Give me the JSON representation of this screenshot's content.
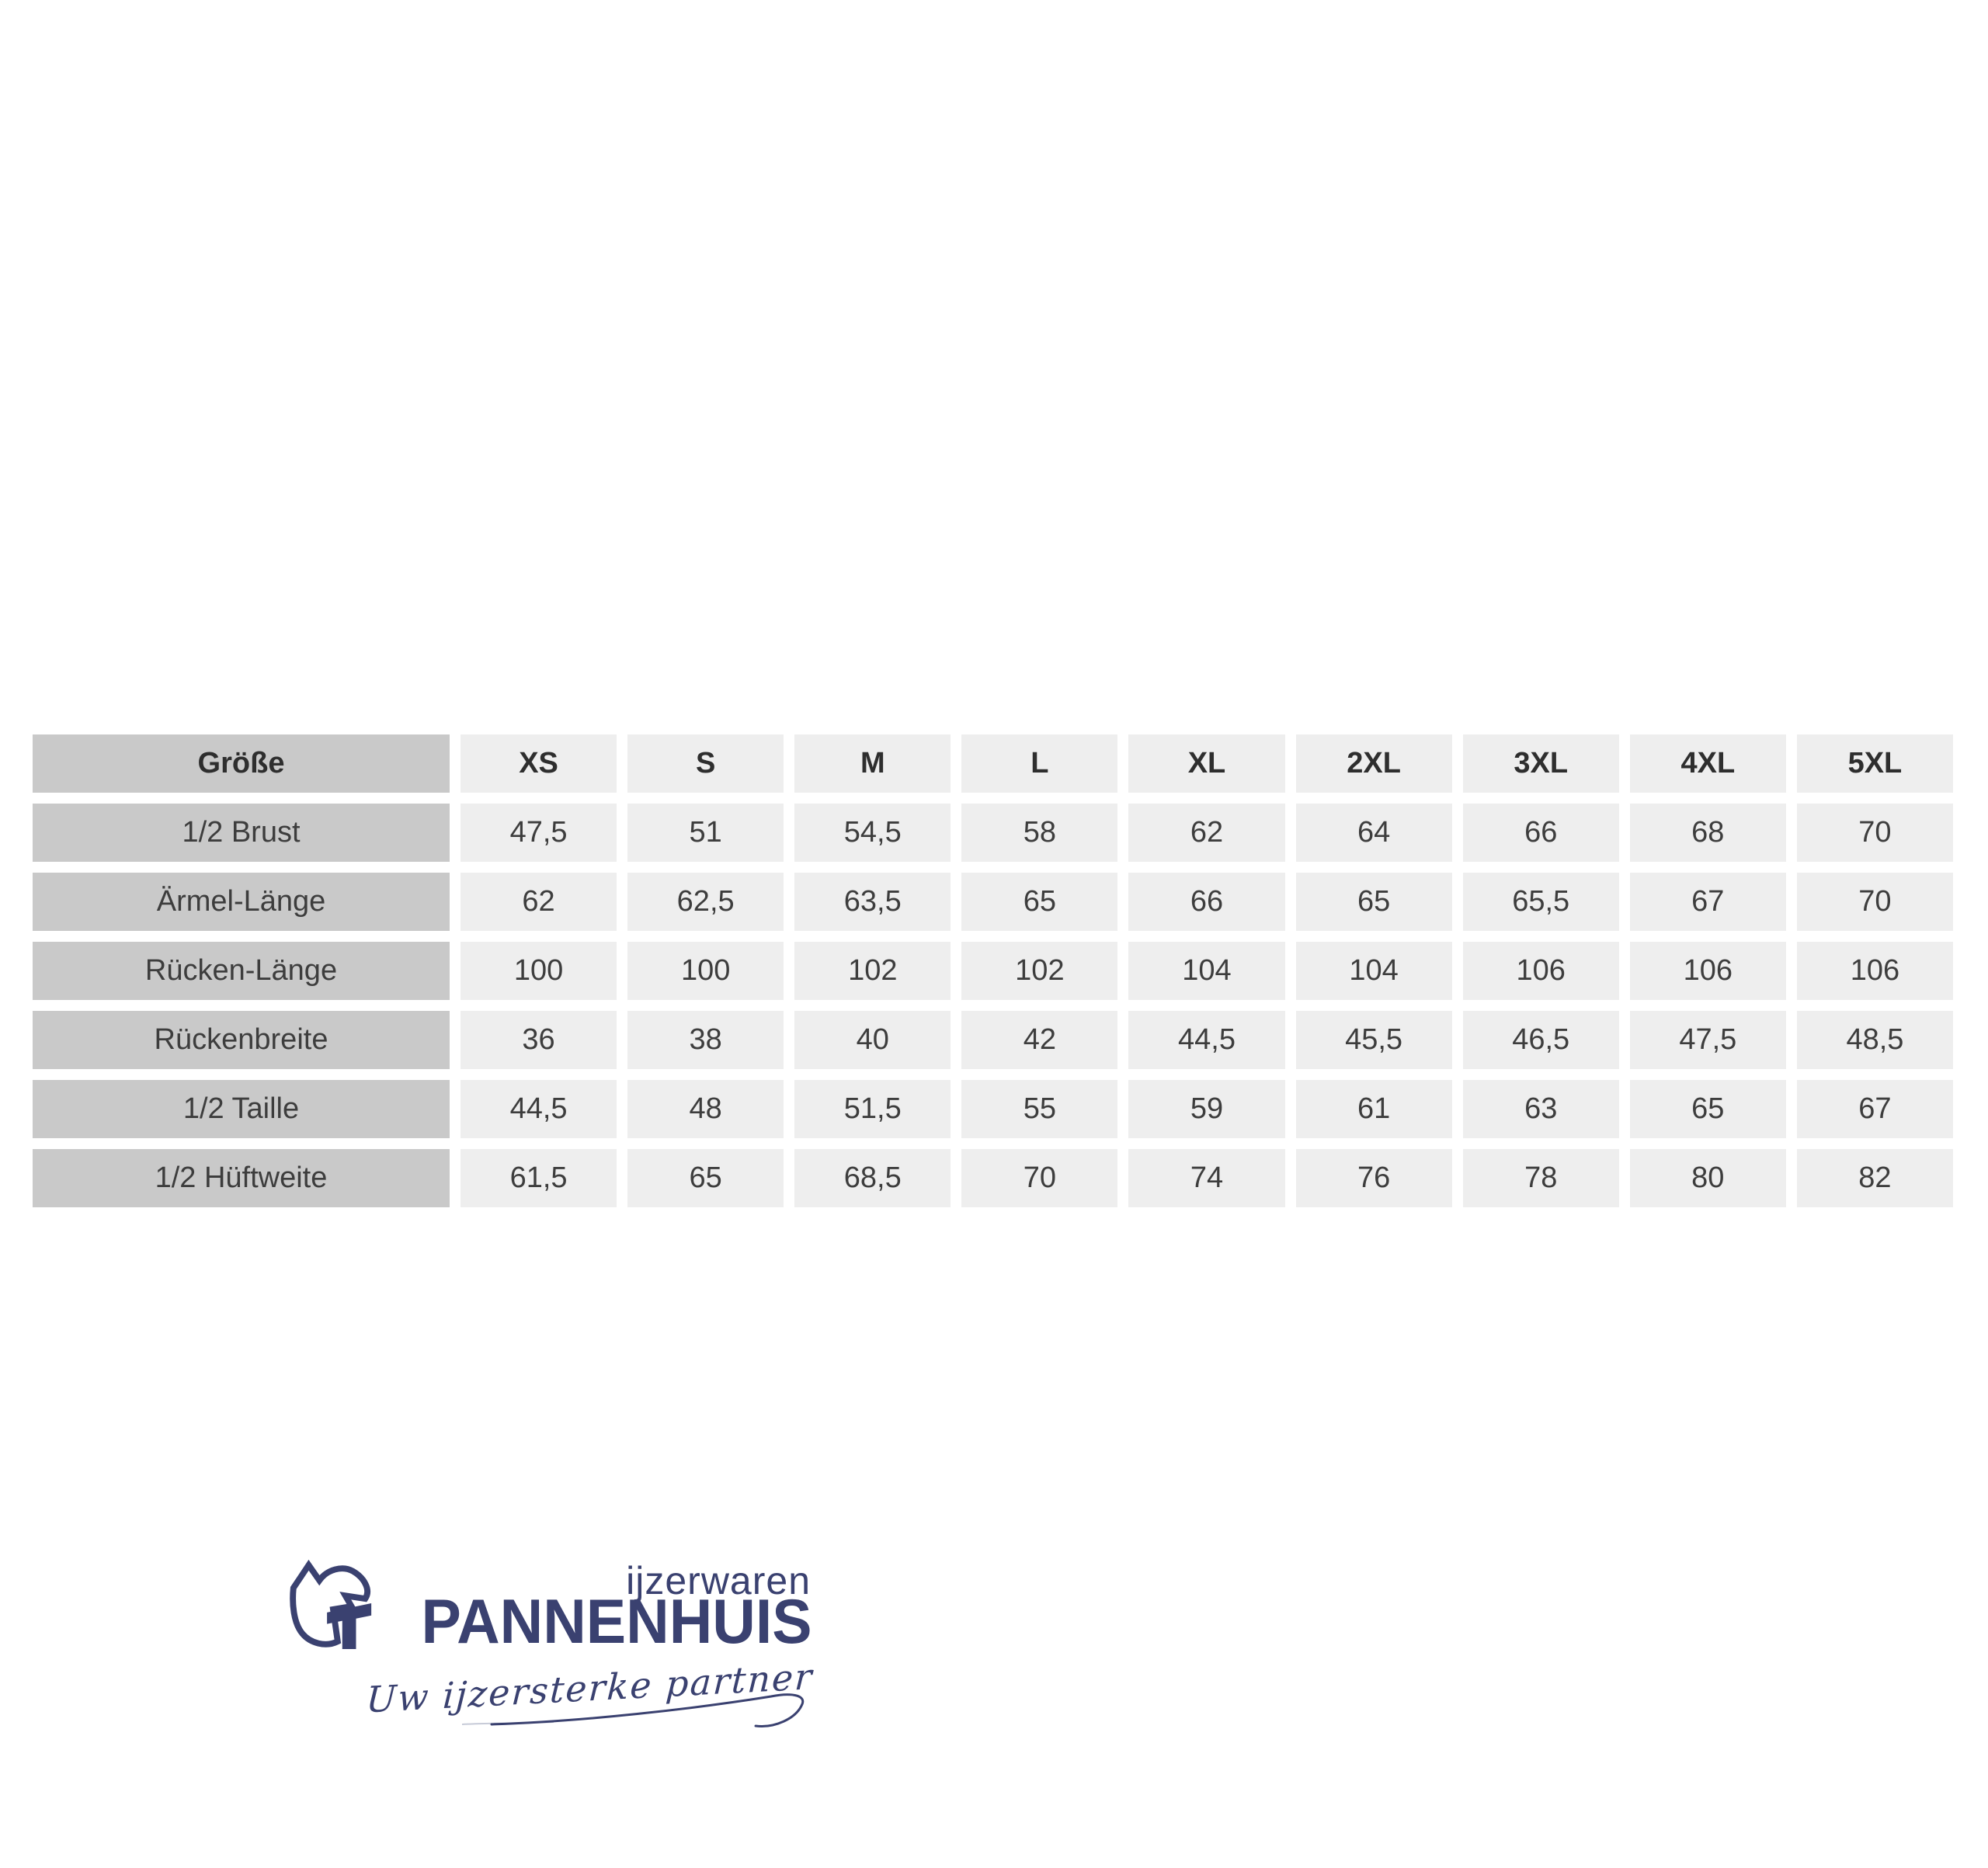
{
  "chart_data": {
    "type": "table",
    "title": "Größe",
    "columns": [
      "Größe",
      "XS",
      "S",
      "M",
      "L",
      "XL",
      "2XL",
      "3XL",
      "4XL",
      "5XL"
    ],
    "rows": [
      {
        "label": "1/2 Brust",
        "values": [
          "47,5",
          "51",
          "54,5",
          "58",
          "62",
          "64",
          "66",
          "68",
          "70"
        ]
      },
      {
        "label": "Ärmel-Länge",
        "values": [
          "62",
          "62,5",
          "63,5",
          "65",
          "66",
          "65",
          "65,5",
          "67",
          "70"
        ]
      },
      {
        "label": "Rücken-Länge",
        "values": [
          "100",
          "100",
          "102",
          "102",
          "104",
          "104",
          "106",
          "106",
          "106"
        ]
      },
      {
        "label": "Rückenbreite",
        "values": [
          "36",
          "38",
          "40",
          "42",
          "44,5",
          "45,5",
          "46,5",
          "47,5",
          "48,5"
        ]
      },
      {
        "label": "1/2 Taille",
        "values": [
          "44,5",
          "48",
          "51,5",
          "55",
          "59",
          "61",
          "63",
          "65",
          "67"
        ]
      },
      {
        "label": "1/2 Hüftweite",
        "values": [
          "61,5",
          "65",
          "68,5",
          "70",
          "74",
          "76",
          "78",
          "80",
          "82"
        ]
      }
    ]
  },
  "logo": {
    "subtitle": "ijzerwaren",
    "name": "PANNENHUIS",
    "tagline": "Uw ijzersterke partner",
    "brand_color": "#3a4170"
  },
  "colors": {
    "label_cell_bg": "#c9c9c9",
    "value_cell_bg": "#eeeeee",
    "table_text": "#3d3d3d",
    "brand_navy": "#3a4170",
    "background": "#ffffff"
  }
}
